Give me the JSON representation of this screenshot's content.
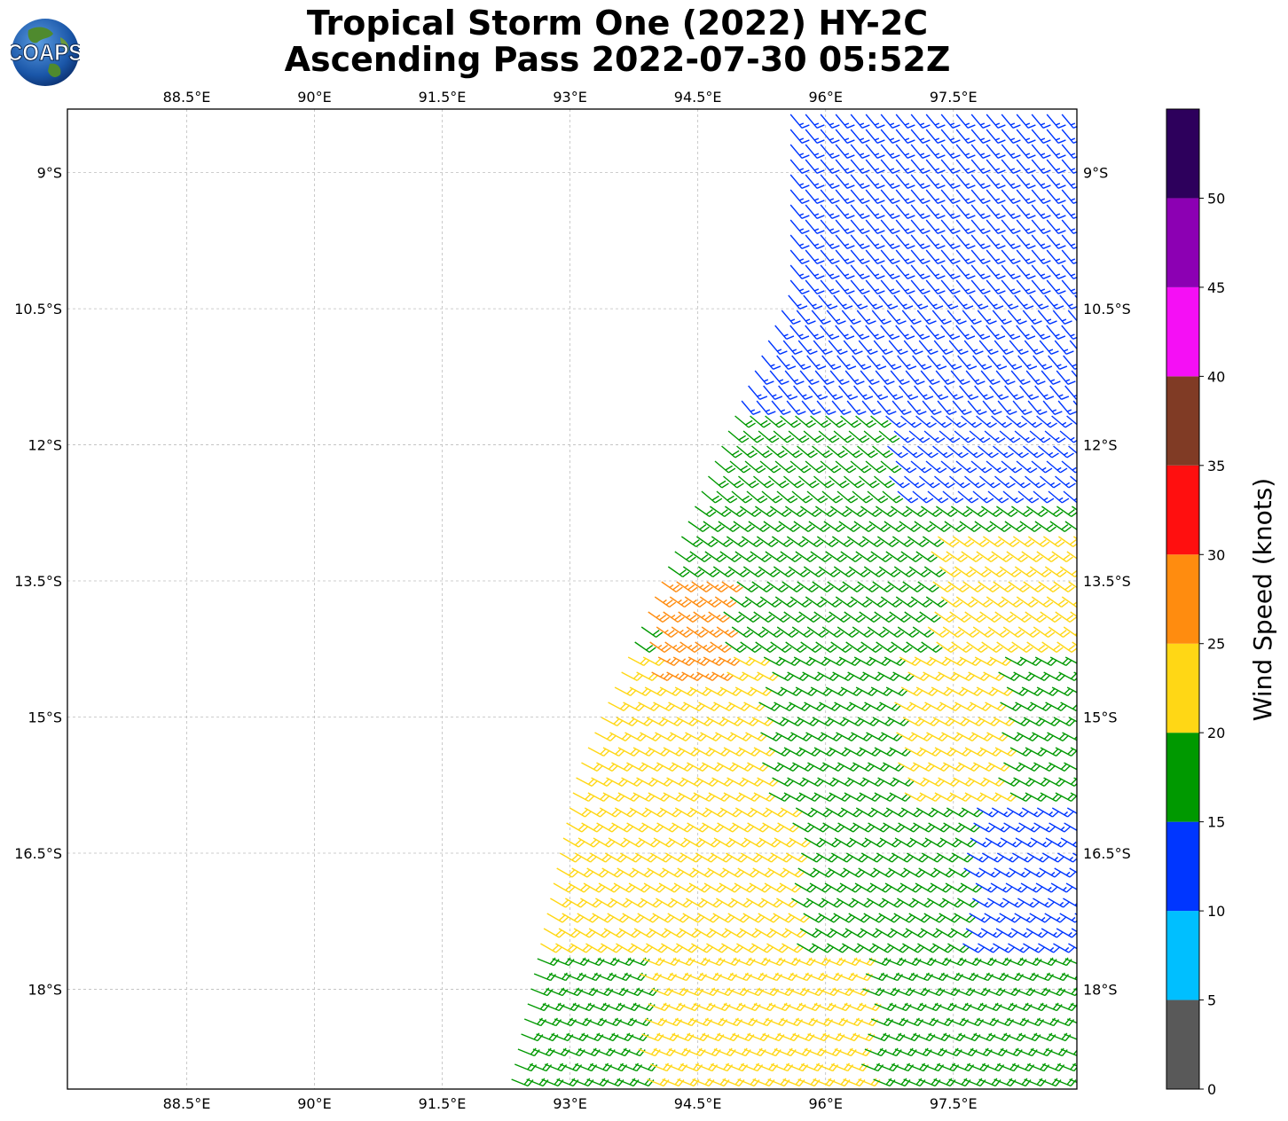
{
  "header": {
    "title_line1": "Tropical Storm One (2022) HY-2C",
    "title_line2": "Ascending Pass 2022-07-30 05:52Z",
    "logo_text": "COAPS"
  },
  "chart_data": {
    "type": "wind-barb-map",
    "xlim": [
      87.1,
      98.95
    ],
    "ylim": [
      -19.1,
      -8.3
    ],
    "x_ticks": [
      {
        "value": 88.5,
        "label": "88.5°E"
      },
      {
        "value": 90.0,
        "label": "90°E"
      },
      {
        "value": 91.5,
        "label": "91.5°E"
      },
      {
        "value": 93.0,
        "label": "93°E"
      },
      {
        "value": 94.5,
        "label": "94.5°E"
      },
      {
        "value": 96.0,
        "label": "96°E"
      },
      {
        "value": 97.5,
        "label": "97.5°E"
      }
    ],
    "y_ticks": [
      {
        "value": -9.0,
        "label": "9°S"
      },
      {
        "value": -10.5,
        "label": "10.5°S"
      },
      {
        "value": -12.0,
        "label": "12°S"
      },
      {
        "value": -13.5,
        "label": "13.5°S"
      },
      {
        "value": -15.0,
        "label": "15°S"
      },
      {
        "value": -16.5,
        "label": "16.5°S"
      },
      {
        "value": -18.0,
        "label": "18°S"
      }
    ],
    "grid": true,
    "swath": {
      "left_edge": [
        [
          95.5,
          -10.3
        ],
        [
          93.0,
          -15.6
        ],
        [
          92.2,
          -19.1
        ]
      ],
      "right_edge_lon": 98.95,
      "top_lat": -8.3
    },
    "wind_regions": [
      {
        "range_knots": "10-15",
        "lat_from": -8.3,
        "lat_to": -12.3,
        "direction_deg": 135
      },
      {
        "range_knots": "15-20",
        "lat_from": -11.0,
        "lat_to": -14.3,
        "direction_deg": 125
      },
      {
        "range_knots": "20-25",
        "lat_from": -14.3,
        "lat_to": -19.1,
        "direction_deg": 115
      },
      {
        "range_knots": "25-30",
        "lat_from": -13.5,
        "lat_to": -14.5,
        "direction_deg": 120
      },
      {
        "range_knots": "10-15",
        "lat_from": -16.2,
        "lat_to": -17.5,
        "direction_deg": 125
      }
    ],
    "colorbar": {
      "label": "Wind Speed (knots)",
      "ticks": [
        0,
        5,
        10,
        15,
        20,
        25,
        30,
        35,
        40,
        45,
        50
      ],
      "bins": [
        {
          "min": 0,
          "max": 5,
          "color": "#595959"
        },
        {
          "min": 5,
          "max": 10,
          "color": "#00bfff"
        },
        {
          "min": 10,
          "max": 15,
          "color": "#0036ff"
        },
        {
          "min": 15,
          "max": 20,
          "color": "#009900"
        },
        {
          "min": 20,
          "max": 25,
          "color": "#ffd715"
        },
        {
          "min": 25,
          "max": 30,
          "color": "#ff8c0f"
        },
        {
          "min": 30,
          "max": 35,
          "color": "#ff0f0f"
        },
        {
          "min": 35,
          "max": 40,
          "color": "#803b25"
        },
        {
          "min": 40,
          "max": 45,
          "color": "#f50ff5"
        },
        {
          "min": 45,
          "max": 50,
          "color": "#8c00b3"
        },
        {
          "min": 50,
          "max": 55,
          "color": "#2d005c"
        }
      ]
    }
  }
}
